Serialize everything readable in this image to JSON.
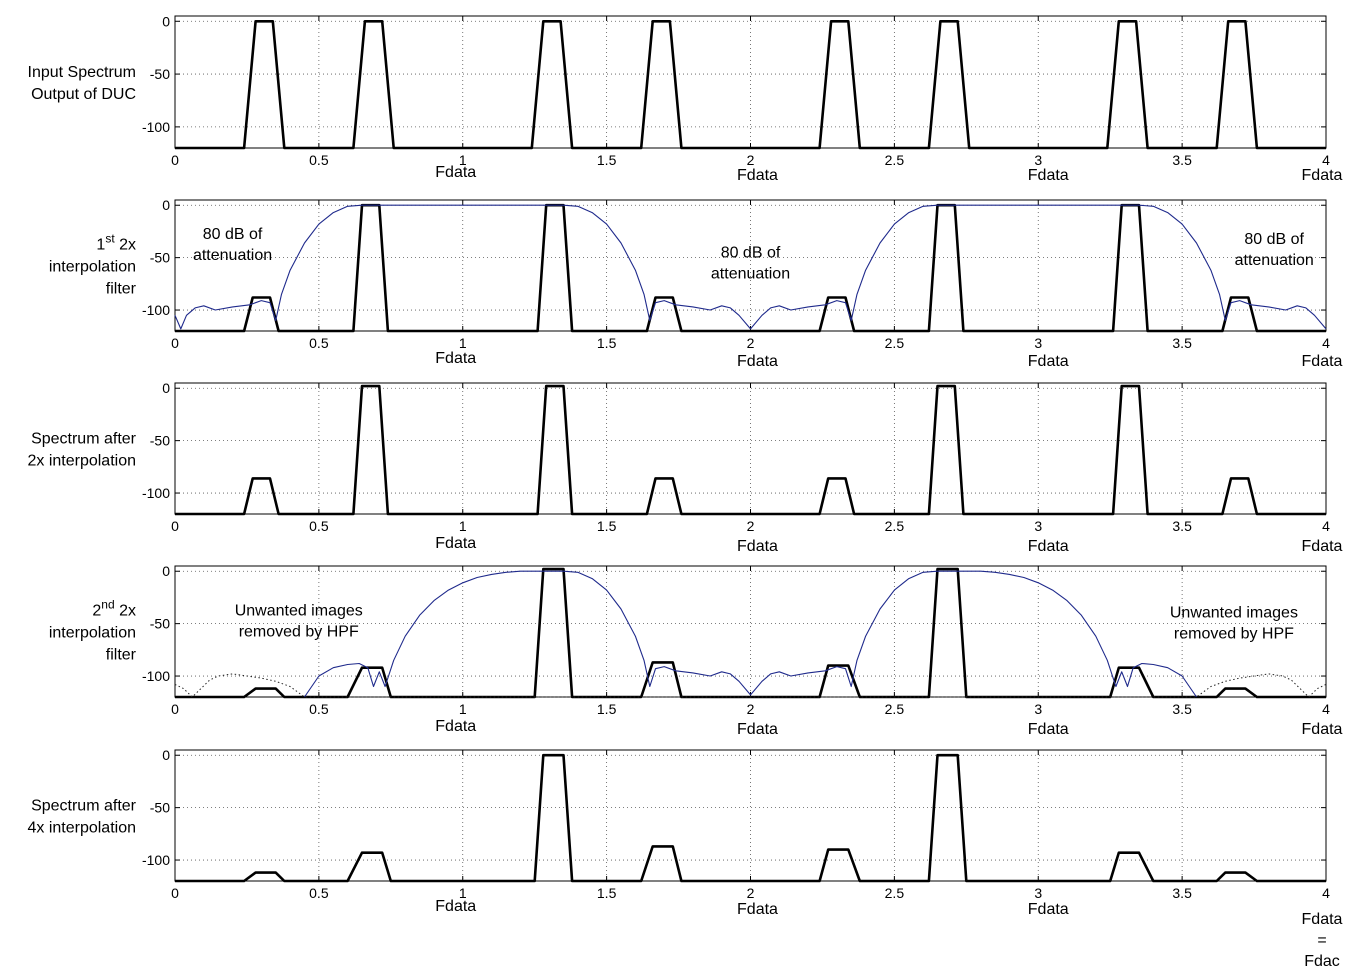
{
  "figure": {
    "xticks": [
      "0",
      "0.5",
      "1",
      "1.5",
      "2",
      "2.5",
      "3",
      "3.5",
      "4"
    ],
    "yticks": [
      "0",
      "-50",
      "-100"
    ],
    "unit_label": "Fdata",
    "last_unit_label_lines": [
      "Fdata",
      "=",
      "Fdac"
    ]
  },
  "colors": {
    "spectrum": "#000000",
    "filter": "#1f2a8c",
    "grid": "#555555"
  },
  "chart_data": [
    {
      "type": "line",
      "ylabel_lines": [
        "Input Spectrum",
        "Output of DUC"
      ],
      "xlim": [
        0,
        4
      ],
      "ylim": [
        -120,
        5
      ],
      "grid": true,
      "series": [
        {
          "role": "spectrum",
          "style": "thick",
          "x": [
            0,
            0.24,
            0.28,
            0.34,
            0.38,
            0.62,
            0.66,
            0.72,
            0.76,
            1.24,
            1.28,
            1.34,
            1.38,
            1.62,
            1.66,
            1.72,
            1.76,
            2.24,
            2.28,
            2.34,
            2.38,
            2.62,
            2.66,
            2.72,
            2.76,
            3.24,
            3.28,
            3.34,
            3.38,
            3.62,
            3.66,
            3.72,
            3.76,
            4
          ],
          "y": [
            -120,
            -120,
            0,
            0,
            -120,
            -120,
            0,
            0,
            -120,
            -120,
            0,
            0,
            -120,
            -120,
            0,
            0,
            -120,
            -120,
            0,
            0,
            -120,
            -120,
            0,
            0,
            -120,
            -120,
            0,
            0,
            -120,
            -120,
            0,
            0,
            -120,
            -120
          ]
        }
      ],
      "x_unit_labels": [
        "1",
        "2",
        "3",
        "4"
      ],
      "annotations": []
    },
    {
      "type": "line",
      "ylabel_lines": [
        "1|st| 2x",
        "interpolation",
        "filter"
      ],
      "xlim": [
        0,
        4
      ],
      "ylim": [
        -120,
        5
      ],
      "grid": true,
      "series": [
        {
          "role": "spectrum",
          "style": "thick",
          "x": [
            0,
            0.24,
            0.27,
            0.33,
            0.36,
            0.62,
            0.65,
            0.71,
            0.74,
            1.26,
            1.29,
            1.35,
            1.38,
            1.64,
            1.67,
            1.73,
            1.76,
            2.24,
            2.27,
            2.33,
            2.36,
            2.62,
            2.65,
            2.71,
            2.74,
            3.26,
            3.29,
            3.35,
            3.38,
            3.64,
            3.67,
            3.73,
            3.76,
            4
          ],
          "y": [
            -120,
            -120,
            -88,
            -88,
            -120,
            -120,
            0,
            0,
            -120,
            -120,
            0,
            0,
            -120,
            -120,
            -88,
            -88,
            -120,
            -120,
            -88,
            -88,
            -120,
            -120,
            0,
            0,
            -120,
            -120,
            0,
            0,
            -120,
            -120,
            -88,
            -88,
            -120,
            -120
          ]
        },
        {
          "role": "filter",
          "style": "thin",
          "x": [
            0,
            0.02,
            0.04,
            0.07,
            0.1,
            0.14,
            0.2,
            0.26,
            0.3,
            0.33,
            0.35,
            0.37,
            0.4,
            0.45,
            0.5,
            0.55,
            0.6,
            0.65,
            0.7,
            0.75,
            1.25,
            1.3,
            1.35,
            1.4,
            1.45,
            1.5,
            1.55,
            1.6,
            1.63,
            1.65,
            1.67,
            1.7,
            1.74,
            1.8,
            1.86,
            1.9,
            1.93,
            1.96,
            2.0,
            2.04,
            2.07,
            2.1,
            2.14,
            2.2,
            2.26,
            2.3,
            2.33,
            2.35,
            2.37,
            2.4,
            2.45,
            2.5,
            2.55,
            2.6,
            2.65,
            2.7,
            2.75,
            3.25,
            3.3,
            3.35,
            3.4,
            3.45,
            3.5,
            3.55,
            3.6,
            3.63,
            3.65,
            3.67,
            3.7,
            3.74,
            3.8,
            3.86,
            3.9,
            3.93,
            3.96,
            4.0
          ],
          "y": [
            -105,
            -118,
            -105,
            -98,
            -96,
            -100,
            -97,
            -95,
            -91,
            -93,
            -110,
            -85,
            -62,
            -36,
            -18,
            -7,
            -1,
            0,
            0,
            0,
            0,
            0,
            0,
            -1,
            -7,
            -18,
            -36,
            -62,
            -85,
            -110,
            -93,
            -91,
            -95,
            -97,
            -100,
            -96,
            -98,
            -105,
            -118,
            -105,
            -98,
            -96,
            -100,
            -97,
            -95,
            -91,
            -93,
            -110,
            -85,
            -62,
            -36,
            -18,
            -7,
            -1,
            0,
            0,
            0,
            0,
            0,
            0,
            -1,
            -7,
            -18,
            -36,
            -62,
            -85,
            -110,
            -93,
            -91,
            -95,
            -97,
            -100,
            -96,
            -98,
            -105,
            -118
          ]
        }
      ],
      "x_unit_labels": [
        "1",
        "2",
        "3",
        "4"
      ],
      "annotations": [
        {
          "lines": [
            "80 dB of",
            "attenuation"
          ],
          "x": 0.2,
          "y": -32
        },
        {
          "lines": [
            "80 dB of",
            "attenuation"
          ],
          "x": 2.0,
          "y": -50
        },
        {
          "lines": [
            "80 dB of",
            "attenuation"
          ],
          "x": 3.82,
          "y": -37
        }
      ]
    },
    {
      "type": "line",
      "ylabel_lines": [
        "Spectrum after",
        "2x interpolation"
      ],
      "xlim": [
        0,
        4
      ],
      "ylim": [
        -120,
        5
      ],
      "grid": true,
      "series": [
        {
          "role": "spectrum",
          "style": "thick",
          "x": [
            0,
            0.24,
            0.27,
            0.33,
            0.36,
            0.62,
            0.65,
            0.71,
            0.74,
            1.26,
            1.29,
            1.35,
            1.38,
            1.64,
            1.67,
            1.73,
            1.76,
            2.24,
            2.27,
            2.33,
            2.36,
            2.62,
            2.65,
            2.71,
            2.74,
            3.26,
            3.29,
            3.35,
            3.38,
            3.64,
            3.67,
            3.73,
            3.76,
            4
          ],
          "y": [
            -120,
            -120,
            -86,
            -86,
            -120,
            -120,
            2,
            2,
            -120,
            -120,
            2,
            2,
            -120,
            -120,
            -86,
            -86,
            -120,
            -120,
            -86,
            -86,
            -120,
            -120,
            2,
            2,
            -120,
            -120,
            2,
            2,
            -120,
            -120,
            -86,
            -86,
            -120,
            -120
          ]
        }
      ],
      "x_unit_labels": [
        "1",
        "2",
        "3",
        "4"
      ],
      "annotations": []
    },
    {
      "type": "line",
      "ylabel_lines": [
        "2|nd| 2x",
        "interpolation",
        "filter"
      ],
      "xlim": [
        0,
        4
      ],
      "ylim": [
        -120,
        5
      ],
      "grid": true,
      "series": [
        {
          "role": "spectrum",
          "style": "thick",
          "x": [
            0,
            0.24,
            0.28,
            0.35,
            0.38,
            0.6,
            0.65,
            0.72,
            0.75,
            1.25,
            1.28,
            1.35,
            1.38,
            1.62,
            1.66,
            1.73,
            1.76,
            2.24,
            2.27,
            2.34,
            2.38,
            2.62,
            2.65,
            2.72,
            2.75,
            3.25,
            3.28,
            3.35,
            3.4,
            3.62,
            3.65,
            3.72,
            3.76,
            4
          ],
          "y": [
            -120,
            -120,
            -112,
            -112,
            -120,
            -120,
            -92,
            -92,
            -120,
            -120,
            2,
            2,
            -120,
            -120,
            -87,
            -87,
            -120,
            -120,
            -90,
            -90,
            -120,
            -120,
            2,
            2,
            -120,
            -120,
            -92,
            -92,
            -120,
            -120,
            -112,
            -112,
            -120,
            -120
          ]
        },
        {
          "role": "filter",
          "style": "thin",
          "x": [
            0.45,
            0.5,
            0.55,
            0.6,
            0.64,
            0.67,
            0.69,
            0.71,
            0.73,
            0.76,
            0.8,
            0.85,
            0.9,
            0.95,
            1.0,
            1.05,
            1.1,
            1.15,
            1.2,
            1.25,
            1.3,
            1.35,
            1.4,
            1.45,
            1.5,
            1.55,
            1.6,
            1.63,
            1.65,
            1.67,
            1.7,
            1.74,
            1.8,
            1.86,
            1.9,
            1.93,
            1.96,
            2.0,
            2.04,
            2.07,
            2.1,
            2.14,
            2.2,
            2.26,
            2.3,
            2.33,
            2.35,
            2.37,
            2.4,
            2.45,
            2.5,
            2.55,
            2.6,
            2.65,
            2.7,
            2.75,
            2.8,
            2.85,
            2.9,
            2.95,
            3.0,
            3.05,
            3.1,
            3.15,
            3.2,
            3.24,
            3.27,
            3.29,
            3.31,
            3.33,
            3.36,
            3.4,
            3.45,
            3.5,
            3.55
          ],
          "y": [
            -120,
            -100,
            -92,
            -89,
            -88,
            -92,
            -110,
            -96,
            -110,
            -85,
            -62,
            -42,
            -28,
            -18,
            -11,
            -6,
            -3,
            -1,
            0,
            0,
            0,
            0,
            -1,
            -7,
            -18,
            -36,
            -62,
            -85,
            -110,
            -93,
            -91,
            -95,
            -97,
            -100,
            -96,
            -98,
            -105,
            -118,
            -105,
            -98,
            -96,
            -100,
            -97,
            -95,
            -91,
            -93,
            -110,
            -85,
            -62,
            -36,
            -18,
            -7,
            -1,
            0,
            0,
            0,
            0,
            -1,
            -3,
            -6,
            -11,
            -18,
            -28,
            -42,
            -62,
            -85,
            -110,
            -96,
            -110,
            -92,
            -88,
            -89,
            -92,
            -100,
            -120
          ]
        },
        {
          "role": "filter",
          "style": "dotted",
          "x": [
            0,
            0.03,
            0.06,
            0.09,
            0.12,
            0.15,
            0.2,
            0.25,
            0.3,
            0.35,
            0.4,
            0.45,
            3.55,
            3.6,
            3.65,
            3.7,
            3.75,
            3.8,
            3.85,
            3.88,
            3.91,
            3.94,
            3.97,
            4.0
          ],
          "y": [
            -108,
            -112,
            -120,
            -112,
            -104,
            -100,
            -98,
            -100,
            -102,
            -105,
            -110,
            -120,
            -120,
            -110,
            -105,
            -102,
            -100,
            -98,
            -100,
            -104,
            -112,
            -120,
            -112,
            -108
          ]
        }
      ],
      "x_unit_labels": [
        "1",
        "2",
        "3",
        "4"
      ],
      "annotations": [
        {
          "lines": [
            "Unwanted images",
            "removed by HPF"
          ],
          "x": 0.43,
          "y": -42
        },
        {
          "lines": [
            "Unwanted images",
            "removed by HPF"
          ],
          "x": 3.68,
          "y": -44
        }
      ]
    },
    {
      "type": "line",
      "ylabel_lines": [
        "Spectrum after",
        "4x interpolation"
      ],
      "xlim": [
        0,
        4
      ],
      "ylim": [
        -120,
        5
      ],
      "grid": true,
      "series": [
        {
          "role": "spectrum",
          "style": "thick",
          "x": [
            0,
            0.24,
            0.28,
            0.35,
            0.38,
            0.6,
            0.65,
            0.72,
            0.75,
            1.25,
            1.28,
            1.35,
            1.38,
            1.62,
            1.66,
            1.73,
            1.76,
            2.24,
            2.27,
            2.34,
            2.38,
            2.62,
            2.65,
            2.72,
            2.75,
            3.25,
            3.28,
            3.35,
            3.4,
            3.62,
            3.65,
            3.72,
            3.76,
            4
          ],
          "y": [
            -120,
            -120,
            -112,
            -112,
            -120,
            -120,
            -93,
            -93,
            -120,
            -120,
            0,
            0,
            -120,
            -120,
            -87,
            -87,
            -120,
            -120,
            -90,
            -90,
            -120,
            -120,
            0,
            0,
            -120,
            -120,
            -93,
            -93,
            -120,
            -120,
            -112,
            -112,
            -120,
            -120
          ]
        }
      ],
      "x_unit_labels": [
        "1",
        "2",
        "3",
        "4"
      ],
      "annotations": []
    }
  ]
}
